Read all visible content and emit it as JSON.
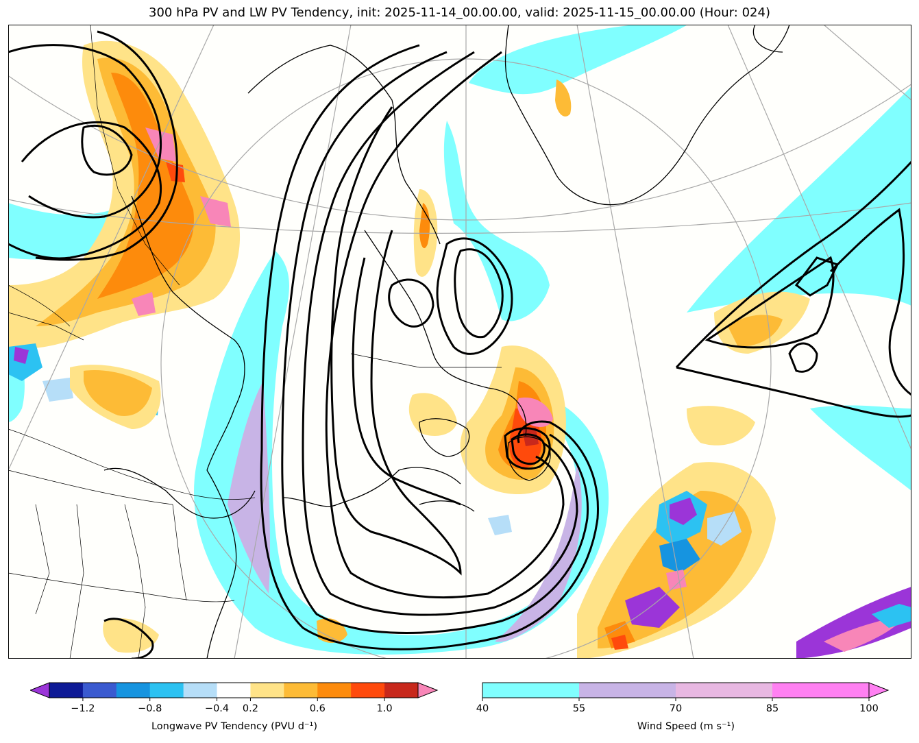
{
  "title": "300 hPa PV and LW PV Tendency, init: 2025-11-14_00.00.00, valid: 2025-11-15_00.00.00 (Hour: 024)",
  "colorbars": {
    "pv_tendency": {
      "label": "Longwave PV Tendency (PVU d⁻¹)",
      "ticks": [
        "−1.2",
        "−0.8",
        "−0.4",
        "0.2",
        "0.6",
        "1.0"
      ],
      "colors": [
        "#0e1a96",
        "#3a5ad0",
        "#1694e0",
        "#2cc2f2",
        "#b6def8",
        "#ffffff",
        "#ffe388",
        "#fdbb36",
        "#fd8b0c",
        "#ff4a0c",
        "#c8281c"
      ],
      "under_color": "#9b35d8",
      "over_color": "#f886b8"
    },
    "wind_speed": {
      "label": "Wind Speed (m s⁻¹)",
      "ticks": [
        "40",
        "55",
        "70",
        "85",
        "100"
      ],
      "colors": [
        "#80ffff",
        "#c8b4e6",
        "#e8b8e2",
        "#ff80f2"
      ],
      "over_color": "#ff80f2"
    }
  },
  "map_colors": {
    "jet": "#80ffff",
    "jet_core": "#c8b4e6",
    "pos1": "#ffe388",
    "pos2": "#fdbb36",
    "pos3": "#fd8b0c",
    "pos4": "#ff4a0c",
    "pos5": "#c8281c",
    "pos6": "#f886b8",
    "neg1": "#b6def8",
    "neg2": "#2cc2f2",
    "neg3": "#1694e0",
    "neg4": "#9b35d8"
  }
}
